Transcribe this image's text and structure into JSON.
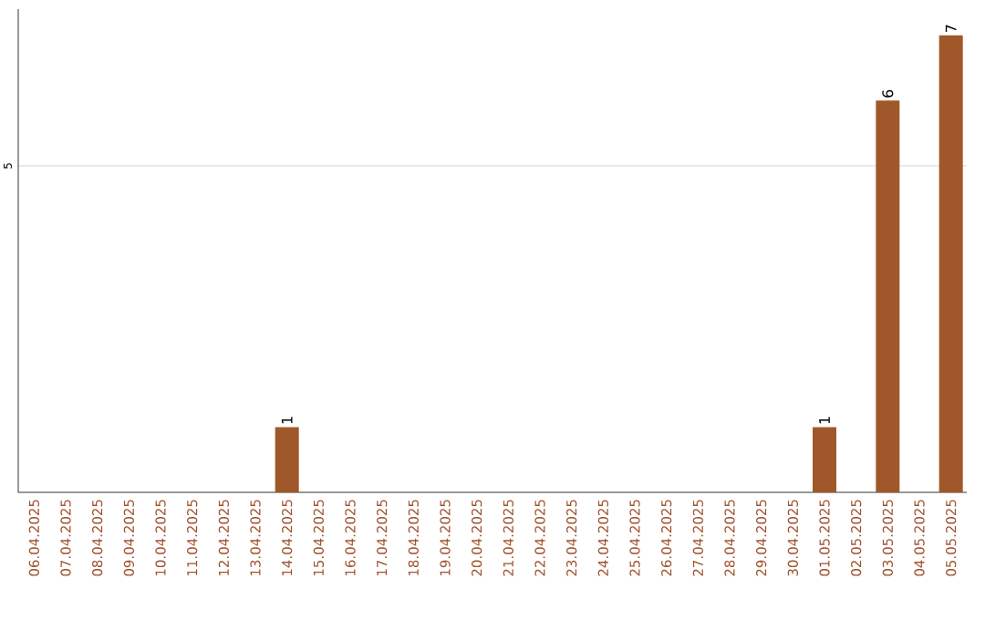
{
  "chart_data": {
    "type": "bar",
    "categories": [
      "06.04.2025",
      "07.04.2025",
      "08.04.2025",
      "09.04.2025",
      "10.04.2025",
      "11.04.2025",
      "12.04.2025",
      "13.04.2025",
      "14.04.2025",
      "15.04.2025",
      "16.04.2025",
      "17.04.2025",
      "18.04.2025",
      "19.04.2025",
      "20.04.2025",
      "21.04.2025",
      "22.04.2025",
      "23.04.2025",
      "24.04.2025",
      "25.04.2025",
      "26.04.2025",
      "27.04.2025",
      "28.04.2025",
      "29.04.2025",
      "30.04.2025",
      "01.05.2025",
      "02.05.2025",
      "03.05.2025",
      "04.05.2025",
      "05.05.2025"
    ],
    "values": [
      0,
      0,
      0,
      0,
      0,
      0,
      0,
      0,
      1,
      0,
      0,
      0,
      0,
      0,
      0,
      0,
      0,
      0,
      0,
      0,
      0,
      0,
      0,
      0,
      0,
      1,
      0,
      6,
      0,
      7
    ],
    "value_labels": [
      null,
      null,
      null,
      null,
      null,
      null,
      null,
      null,
      "1",
      null,
      null,
      null,
      null,
      null,
      null,
      null,
      null,
      null,
      null,
      null,
      null,
      null,
      null,
      null,
      null,
      "1",
      null,
      "6",
      null,
      "7"
    ],
    "color": "#a0582a",
    "ylim": [
      0,
      7.4
    ],
    "yticks": [
      5
    ],
    "grid": "y"
  }
}
